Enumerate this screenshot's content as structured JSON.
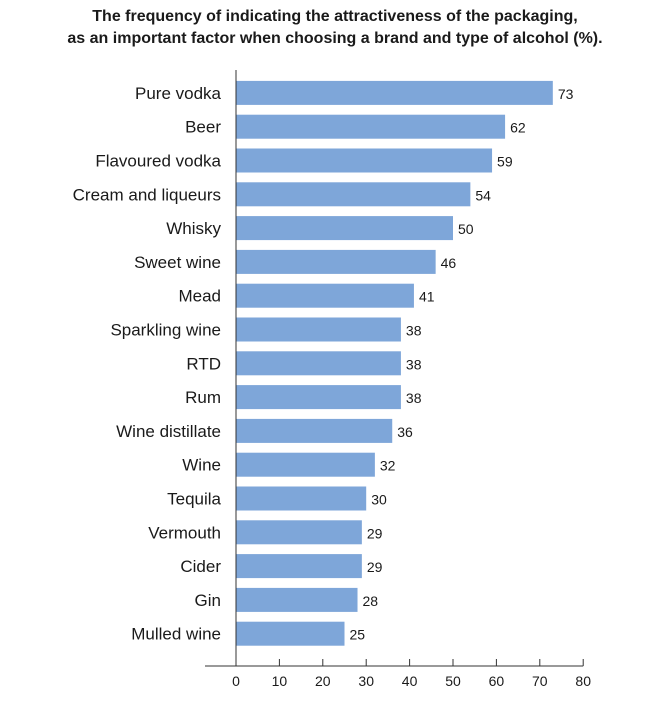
{
  "chart_data": {
    "type": "bar",
    "orientation": "horizontal",
    "title_line1": "The frequency of indicating the attractiveness of the packaging,",
    "title_line2": "as an important factor when choosing a brand and type of alcohol (%).",
    "categories": [
      "Pure vodka",
      "Beer",
      "Flavoured vodka",
      "Cream and liqueurs",
      "Whisky",
      "Sweet wine",
      "Mead",
      "Sparkling wine",
      "RTD",
      "Rum",
      "Wine distillate",
      "Wine",
      "Tequila",
      "Vermouth",
      "Cider",
      "Gin",
      "Mulled wine"
    ],
    "values": [
      73,
      62,
      59,
      54,
      50,
      46,
      41,
      38,
      38,
      38,
      36,
      32,
      30,
      29,
      29,
      28,
      25
    ],
    "xlim": [
      0,
      80
    ],
    "xticks": [
      0,
      10,
      20,
      30,
      40,
      50,
      60,
      70,
      80
    ],
    "bar_color": "#7ea6d9",
    "grid": false,
    "data_labels": true
  }
}
